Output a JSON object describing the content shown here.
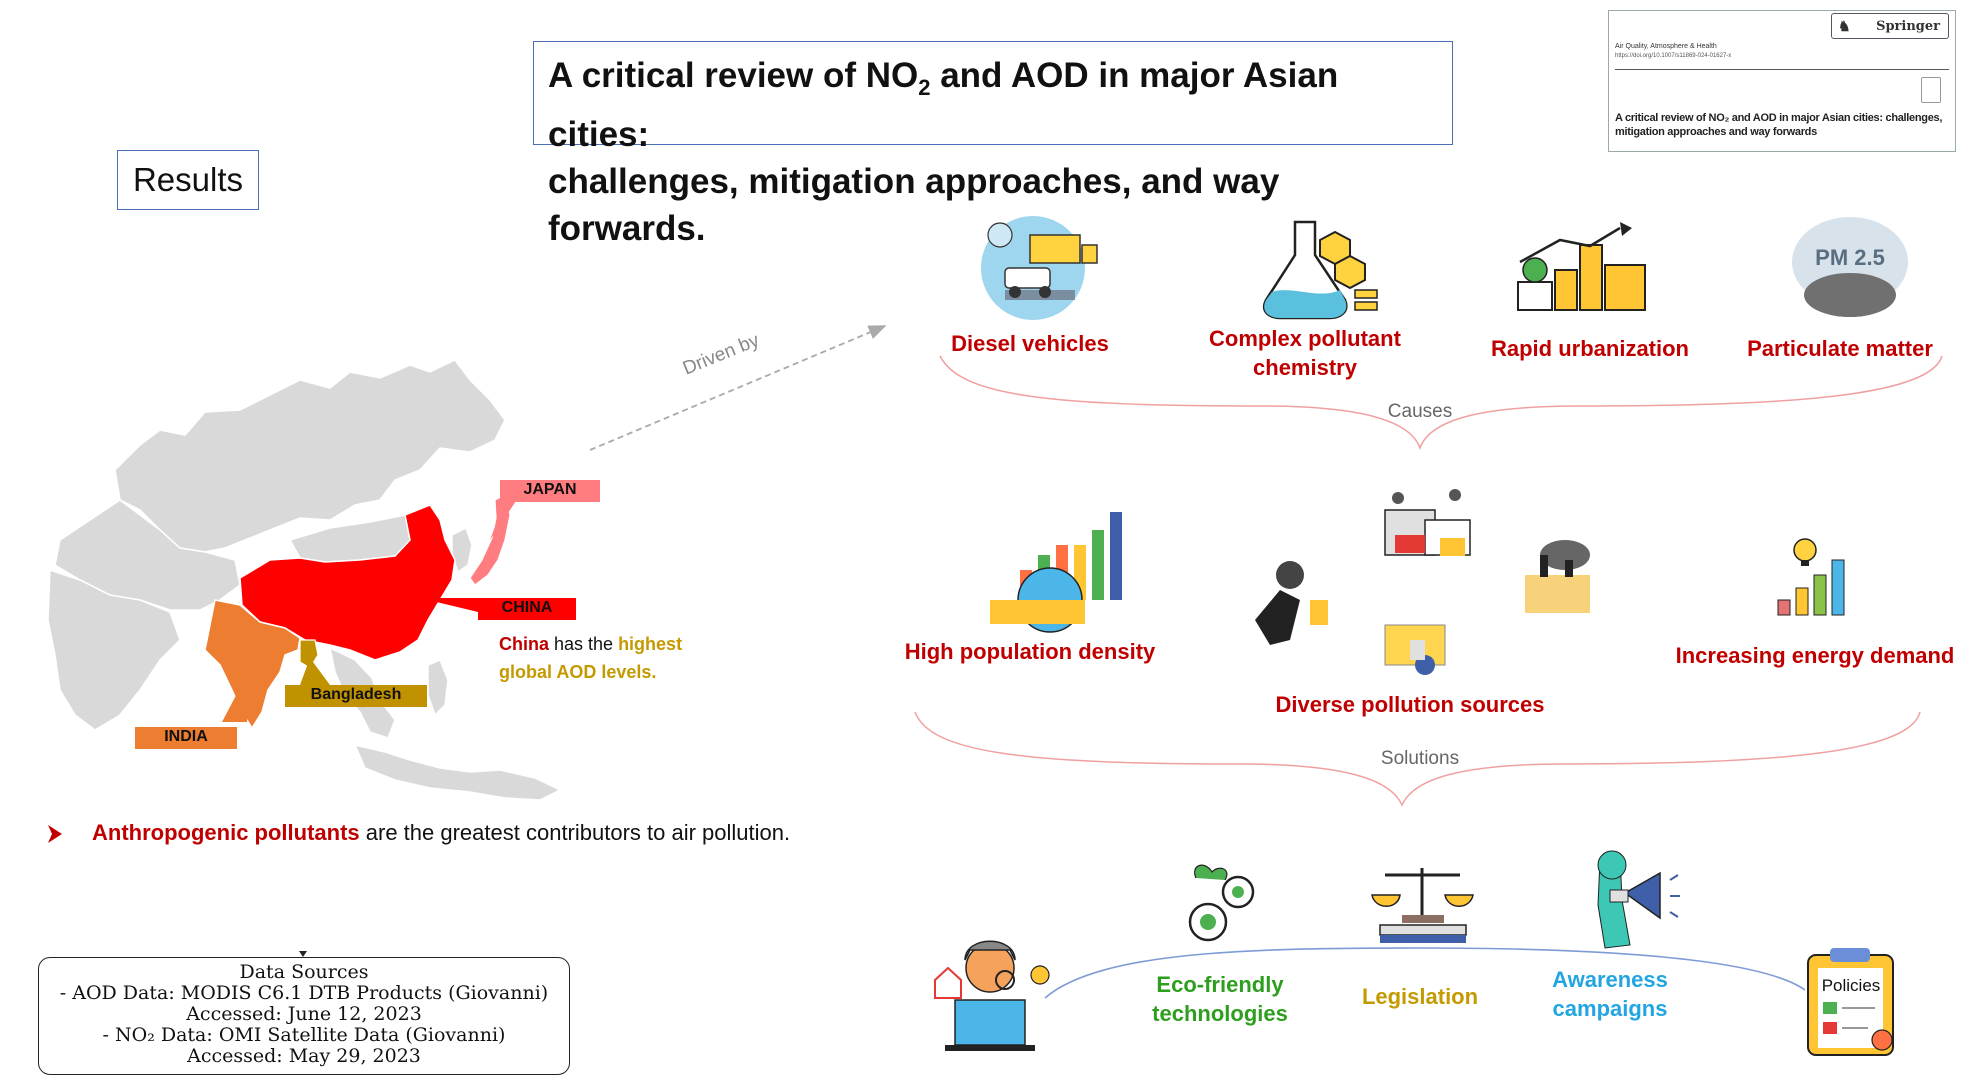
{
  "title": {
    "part1": "A critical review of NO",
    "sub": "2",
    "part2": " and AOD in major Asian cities:",
    "line2": "challenges, mitigation approaches, and way forwards."
  },
  "results_label": "Results",
  "paper": {
    "publisher": "Springer",
    "journal": "Air Quality, Atmosphere & Health",
    "doi": "https://doi.org/10.1007/s11869-024-01627-x",
    "title_line1": "A critical review of NO₂ and AOD in major Asian cities: challenges,",
    "title_line2": "mitigation approaches and way forwards"
  },
  "map": {
    "japan": "JAPAN",
    "china": "CHINA",
    "india": "INDIA",
    "bangladesh": "Bangladesh",
    "note_china": "China",
    "note_has": " has the ",
    "note_highest": "highest",
    "note_line2": "global AOD levels."
  },
  "driven_by": "Driven by",
  "causes_label": "Causes",
  "solutions_label": "Solutions",
  "causes": [
    {
      "line1": "Diesel vehicles",
      "line2": ""
    },
    {
      "line1": "Complex pollutant",
      "line2": "chemistry"
    },
    {
      "line1": "Rapid urbanization",
      "line2": ""
    },
    {
      "line1": "Particulate matter",
      "line2": ""
    }
  ],
  "pm_icon_text": "PM 2.5",
  "drivers": {
    "population": "High population density",
    "diverse": "Diverse pollution sources",
    "energy": "Increasing energy demand"
  },
  "solutions": {
    "eco1": "Eco-friendly",
    "eco2": "technologies",
    "legislation": "Legislation",
    "aware1": "Awareness",
    "aware2": "campaigns",
    "policies": "Policies"
  },
  "bullet": {
    "highlight": "Anthropogenic pollutants",
    "rest": " are the greatest contributors to air pollution."
  },
  "sources": {
    "heading": "Data Sources",
    "l1": "- AOD Data: MODIS C6.1 DTB Products (Giovanni)",
    "l2": "Accessed: June 12, 2023",
    "l3": "- NO₂ Data: OMI Satellite Data (Giovanni)",
    "l4": "Accessed: May 29, 2023"
  },
  "colors": {
    "china": "#ff0000",
    "india": "#ed7d31",
    "bangladesh": "#c09200",
    "japan": "#ff7c80",
    "land": "#d9d9d9",
    "accent_red": "#c00000"
  }
}
